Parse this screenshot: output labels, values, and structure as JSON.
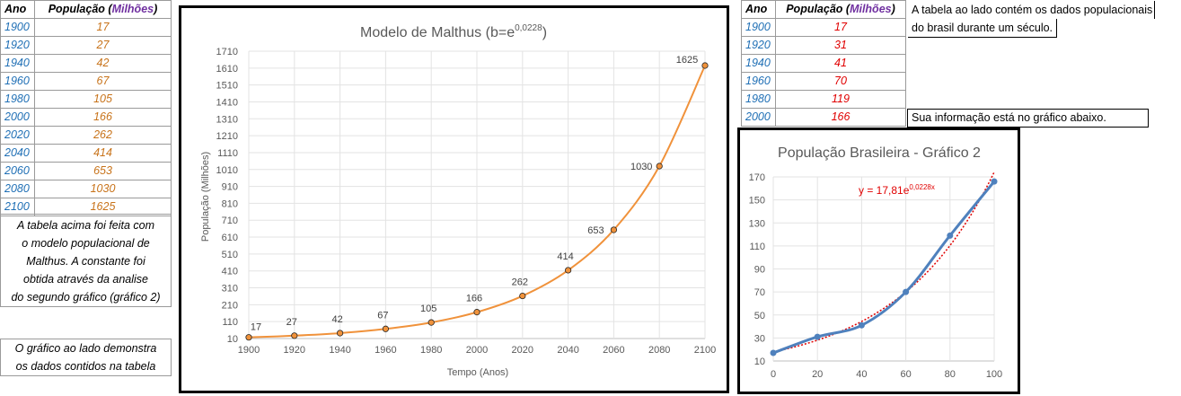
{
  "left_table": {
    "header": {
      "year": "Ano",
      "pop_prefix": "População (",
      "pop_unit": "Milhões",
      "pop_suffix": ")"
    },
    "rows": [
      {
        "year": "1900",
        "pop": "17"
      },
      {
        "year": "1920",
        "pop": "27"
      },
      {
        "year": "1940",
        "pop": "42"
      },
      {
        "year": "1960",
        "pop": "67"
      },
      {
        "year": "1980",
        "pop": "105"
      },
      {
        "year": "2000",
        "pop": "166"
      },
      {
        "year": "2020",
        "pop": "262"
      },
      {
        "year": "2040",
        "pop": "414"
      },
      {
        "year": "2060",
        "pop": "653"
      },
      {
        "year": "2080",
        "pop": "1030"
      },
      {
        "year": "2100",
        "pop": "1625"
      }
    ],
    "note1_lines": [
      "A tabela acima foi feita com",
      "o modelo populacional de",
      "Malthus. A constante foi",
      "obtida através da analise",
      "do segundo gráfico (gráfico 2)"
    ],
    "note2_lines": [
      "O gráfico ao lado demonstra",
      "os dados contidos na tabela"
    ]
  },
  "right_table": {
    "header": {
      "year": "Ano",
      "pop_prefix": "População (",
      "pop_unit": "Milhões",
      "pop_suffix": ")"
    },
    "rows": [
      {
        "year": "1900",
        "pop": "17"
      },
      {
        "year": "1920",
        "pop": "31"
      },
      {
        "year": "1940",
        "pop": "41"
      },
      {
        "year": "1960",
        "pop": "70"
      },
      {
        "year": "1980",
        "pop": "119"
      },
      {
        "year": "2000",
        "pop": "166"
      }
    ],
    "note_line1": "A tabela ao lado contém os dados populacionais",
    "note_line2": "do brasil durante um século.",
    "note_bottom": "Sua informação está no gráfico abaixo."
  },
  "chart_data": [
    {
      "type": "line",
      "title_main": "Modelo de Malthus (b=e",
      "title_exp": "0,0228",
      "title_close": ")",
      "xlabel": "Tempo (Anos)",
      "ylabel": "População (Milhões)",
      "x": [
        1900,
        1920,
        1940,
        1960,
        1980,
        2000,
        2020,
        2040,
        2060,
        2080,
        2100
      ],
      "values": [
        17,
        27,
        42,
        67,
        105,
        166,
        262,
        414,
        653,
        1030,
        1625
      ],
      "xlim": [
        1900,
        2100
      ],
      "ylim": [
        10,
        1710
      ],
      "yticks": [
        10,
        110,
        210,
        310,
        410,
        510,
        610,
        710,
        810,
        910,
        1010,
        1110,
        1210,
        1310,
        1410,
        1510,
        1610,
        1710
      ],
      "xticks": [
        1900,
        1920,
        1940,
        1960,
        1980,
        2000,
        2020,
        2040,
        2060,
        2080,
        2100
      ],
      "line_color": "#f0923b",
      "grid": true
    },
    {
      "type": "line",
      "title": "População Brasileira - Gráfico 2",
      "x": [
        0,
        20,
        40,
        60,
        80,
        100
      ],
      "values": [
        17,
        31,
        41,
        70,
        119,
        166
      ],
      "xlim": [
        0,
        100
      ],
      "ylim": [
        10,
        170
      ],
      "yticks": [
        10,
        30,
        50,
        70,
        90,
        110,
        130,
        150,
        170
      ],
      "xticks": [
        0,
        20,
        40,
        60,
        80,
        100
      ],
      "trendline": {
        "type": "exponential",
        "a": 17.81,
        "b": 0.0228,
        "label_main": "y = 17,81e",
        "label_exp": "0,0228x",
        "color": "#e00000"
      },
      "line_color": "#4f81bd",
      "grid": true
    }
  ]
}
